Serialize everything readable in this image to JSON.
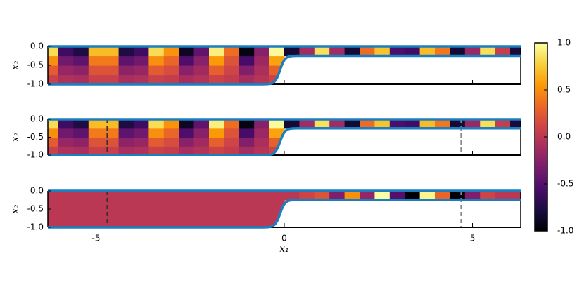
{
  "chart_data": [
    {
      "type": "heatmap",
      "ylabel": "x₂",
      "show_xticklabels": false,
      "boundary_color": "#1a7fbf",
      "xbins": [
        -6.4,
        -6,
        -5.6,
        -5.2,
        -4.8,
        -4.4,
        -4,
        -3.6,
        -3.2,
        -2.8,
        -2.4,
        -2,
        -1.6,
        -1.2,
        -0.8,
        -0.4,
        0,
        0.4,
        0.8,
        1.2,
        1.6,
        2,
        2.4,
        2.8,
        3.2,
        3.6,
        4,
        4.4,
        4.8,
        5.2,
        5.6,
        6,
        6.4
      ],
      "ybins": [
        -1,
        -0.75,
        -0.5,
        -0.25,
        0
      ],
      "z": [
        [
          0.08,
          -0.06,
          -0.08,
          0.07,
          0.07,
          -0.08,
          -0.06,
          0.08,
          0.05,
          -0.09,
          -0.04,
          0.09,
          0.04,
          -0.1,
          -0.03,
          0.1,
          null,
          null,
          null,
          null,
          null,
          null,
          null,
          null,
          null,
          null,
          null,
          null,
          null,
          null,
          null,
          null
        ],
        [
          0.25,
          -0.18,
          -0.23,
          0.21,
          0.21,
          -0.23,
          -0.18,
          0.25,
          0.16,
          -0.26,
          -0.13,
          0.28,
          0.11,
          -0.29,
          -0.08,
          0.29,
          null,
          null,
          null,
          null,
          null,
          null,
          null,
          null,
          null,
          null,
          null,
          null,
          null,
          null,
          null,
          null
        ],
        [
          0.5,
          -0.37,
          -0.46,
          0.41,
          0.41,
          -0.46,
          -0.37,
          0.5,
          0.31,
          -0.53,
          -0.26,
          0.55,
          0.21,
          -0.57,
          -0.16,
          0.59,
          null,
          null,
          null,
          null,
          null,
          null,
          null,
          null,
          null,
          null,
          null,
          null,
          null,
          null,
          null,
          null
        ],
        [
          0.83,
          -0.61,
          -0.76,
          0.69,
          0.69,
          -0.76,
          -0.61,
          0.83,
          0.52,
          -0.88,
          -0.44,
          0.92,
          0.35,
          -0.95,
          -0.26,
          0.98,
          -0.82,
          -0.12,
          0.85,
          -0.12,
          -0.82,
          0.34,
          0.72,
          -0.54,
          -0.6,
          0.69,
          0.39,
          -0.82,
          -0.17,
          0.84,
          0.06,
          -0.79
        ]
      ],
      "xlim": [
        -6.28,
        6.28
      ],
      "ylim": [
        -1,
        0
      ],
      "xticks": [
        -5,
        0,
        5
      ],
      "yticks": [
        {
          "value": 0,
          "label": "0.0"
        },
        -0.5,
        {
          "value": -1,
          "label": "-1.0"
        }
      ]
    },
    {
      "type": "heatmap",
      "ylabel": "x₂",
      "show_xticklabels": false,
      "boundary_color": "#1a7fbf",
      "xbins": [
        -6.4,
        -6,
        -5.6,
        -5.2,
        -4.8,
        -4.4,
        -4,
        -3.6,
        -3.2,
        -2.8,
        -2.4,
        -2,
        -1.6,
        -1.2,
        -0.8,
        -0.4,
        0,
        0.4,
        0.8,
        1.2,
        1.6,
        2,
        2.4,
        2.8,
        3.2,
        3.6,
        4,
        4.4,
        4.8,
        5.2,
        5.6,
        6,
        6.4
      ],
      "ybins": [
        -1,
        -0.75,
        -0.5,
        -0.25,
        0
      ],
      "z": [
        [
          0.08,
          -0.06,
          -0.08,
          0.07,
          0.07,
          -0.08,
          -0.06,
          0.08,
          0.05,
          -0.09,
          -0.04,
          0.09,
          0.04,
          -0.1,
          -0.03,
          0.1,
          null,
          null,
          null,
          null,
          null,
          null,
          null,
          null,
          null,
          null,
          null,
          null,
          null,
          null,
          null,
          null
        ],
        [
          0.25,
          -0.18,
          -0.23,
          0.21,
          0.21,
          -0.23,
          -0.18,
          0.25,
          0.16,
          -0.26,
          -0.13,
          0.28,
          0.11,
          -0.29,
          -0.08,
          0.29,
          null,
          null,
          null,
          null,
          null,
          null,
          null,
          null,
          null,
          null,
          null,
          null,
          null,
          null,
          null,
          null
        ],
        [
          0.5,
          -0.37,
          -0.46,
          0.41,
          0.41,
          -0.46,
          -0.37,
          0.5,
          0.31,
          -0.53,
          -0.26,
          0.55,
          0.21,
          -0.57,
          -0.16,
          0.59,
          null,
          null,
          null,
          null,
          null,
          null,
          null,
          null,
          null,
          null,
          null,
          null,
          null,
          null,
          null,
          null
        ],
        [
          0.83,
          -0.61,
          -0.76,
          0.69,
          0.69,
          -0.76,
          -0.61,
          0.83,
          0.52,
          -0.88,
          -0.44,
          0.92,
          0.35,
          -0.95,
          -0.26,
          0.98,
          -0.82,
          -0.12,
          0.85,
          -0.12,
          -0.82,
          0.34,
          0.72,
          -0.54,
          -0.6,
          0.69,
          0.39,
          -0.82,
          -0.17,
          0.84,
          0.06,
          -0.79
        ]
      ],
      "vlines": [
        {
          "x": -4.7,
          "color": "#333333"
        },
        {
          "x": 4.7,
          "color": "#888888"
        }
      ],
      "xlim": [
        -6.28,
        6.28
      ],
      "ylim": [
        -1,
        0
      ],
      "xticks": [
        -5,
        0,
        5
      ],
      "yticks": [
        {
          "value": 0,
          "label": "0.0"
        },
        -0.5,
        {
          "value": -1,
          "label": "-1.0"
        }
      ]
    },
    {
      "type": "heatmap",
      "ylabel": "x₂",
      "xlabel": "x₁",
      "show_xticklabels": true,
      "boundary_color": "#1a7fbf",
      "xbins": [
        -6.4,
        -6,
        -5.6,
        -5.2,
        -4.8,
        -4.4,
        -4,
        -3.6,
        -3.2,
        -2.8,
        -2.4,
        -2,
        -1.6,
        -1.2,
        -0.8,
        -0.4,
        0,
        0.4,
        0.8,
        1.2,
        1.6,
        2,
        2.4,
        2.8,
        3.2,
        3.6,
        4,
        4.4,
        4.8,
        5.2,
        5.6,
        6,
        6.4
      ],
      "ybins": [
        -1,
        -0.75,
        -0.5,
        -0.25,
        0
      ],
      "z": [
        [
          0,
          0,
          0,
          0,
          0,
          0,
          0,
          0,
          0,
          0,
          0,
          0,
          0,
          0,
          0,
          0,
          null,
          null,
          null,
          null,
          null,
          null,
          null,
          null,
          null,
          null,
          null,
          null,
          null,
          null,
          null,
          null
        ],
        [
          0,
          0,
          0,
          0,
          0,
          0,
          0,
          0,
          0,
          0,
          0,
          0,
          0,
          0,
          0,
          0,
          null,
          null,
          null,
          null,
          null,
          null,
          null,
          null,
          null,
          null,
          null,
          null,
          null,
          null,
          null,
          null
        ],
        [
          0,
          0,
          0,
          0,
          0,
          0,
          0,
          0,
          0,
          0,
          0,
          0,
          0,
          0,
          0,
          0,
          null,
          null,
          null,
          null,
          null,
          null,
          null,
          null,
          null,
          null,
          null,
          null,
          null,
          null,
          null,
          null
        ],
        [
          0,
          0,
          0,
          0,
          0,
          0,
          0,
          0,
          0,
          0,
          0,
          0,
          0,
          0,
          0,
          0,
          0,
          0.1,
          0.2,
          -0.3,
          0.5,
          -0.2,
          1,
          -0.5,
          -1,
          0.95,
          0.3,
          -1,
          -0.3,
          0.1,
          0,
          0
        ]
      ],
      "vlines": [
        {
          "x": -4.7,
          "color": "#333333"
        },
        {
          "x": 4.7,
          "color": "#888888"
        }
      ],
      "xlim": [
        -6.28,
        6.28
      ],
      "ylim": [
        -1,
        0
      ],
      "xticks": [
        -5,
        0,
        5
      ],
      "yticks": [
        {
          "value": 0,
          "label": "0.0"
        },
        -0.5,
        {
          "value": -1,
          "label": "-1.0"
        }
      ]
    }
  ],
  "colorbar": {
    "lim": [
      -1,
      1
    ],
    "colormap": [
      "#000004",
      "#1b0c41",
      "#4a0c6b",
      "#781c6d",
      "#a52c60",
      "#cf4446",
      "#ed6925",
      "#fb9b06",
      "#f7d13d",
      "#fcffa4"
    ],
    "ticks": [
      {
        "value": 1,
        "label": "1.0"
      },
      0.5,
      {
        "value": 0,
        "label": "0.0"
      },
      -0.5,
      {
        "value": -1,
        "label": "-1.0"
      }
    ]
  }
}
